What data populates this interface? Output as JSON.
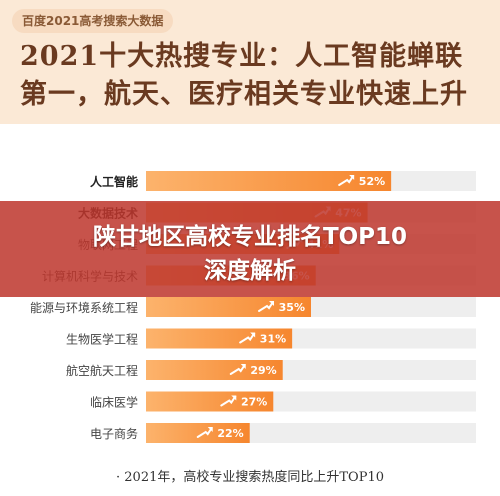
{
  "header": {
    "tag": "百度2021高考搜索大数据",
    "title_line1": "2021十大热搜专业：人工智能蝉联",
    "title_line2": "第一，航天、医疗相关专业快速上升"
  },
  "overlay": {
    "line1": "陕甘地区高校专业排名TOP10",
    "line2": "深度解析"
  },
  "footnote": "· 2021年，高校专业搜索热度同比上升TOP10",
  "colors": {
    "bar_start": "#fcb36c",
    "bar_end": "#f6862e",
    "track": "#eeeeee",
    "header_bg": "#fbe9d6",
    "banner": "#be372d"
  },
  "chart_data": {
    "type": "bar",
    "orientation": "horizontal",
    "categories": [
      "人工智能",
      "大数据技术",
      "物联网工程",
      "计算机科学与技术",
      "能源与环境系统工程",
      "生物医学工程",
      "航空航天工程",
      "临床医学",
      "电子商务"
    ],
    "values": [
      52,
      47,
      41,
      36,
      35,
      31,
      29,
      27,
      22
    ],
    "labels": [
      "52%",
      "47%",
      "41%",
      "36%",
      "35%",
      "31%",
      "29%",
      "27%",
      "22%"
    ],
    "xlim": [
      0,
      70
    ],
    "arrow_icon": "trend-up-arrow-icon"
  }
}
